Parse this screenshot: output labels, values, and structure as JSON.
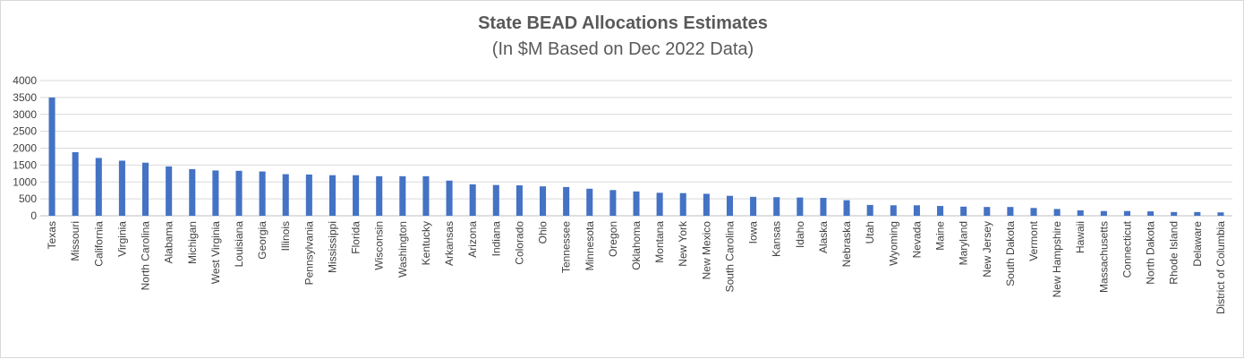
{
  "chart_data": {
    "type": "bar",
    "title": "State BEAD Allocations Estimates",
    "subtitle": "(In $M Based on Dec 2022 Data)",
    "xlabel": "",
    "ylabel": "",
    "ylim": [
      0,
      4000
    ],
    "yticks": [
      0,
      500,
      1000,
      1500,
      2000,
      2500,
      3000,
      3500,
      4000
    ],
    "grid": true,
    "legend": "none",
    "bar_color": "#4472c4",
    "categories": [
      "Texas",
      "Missouri",
      "California",
      "Virginia",
      "North Carolina",
      "Alabama",
      "Michigan",
      "West Virginia",
      "Louisiana",
      "Georgia",
      "Illinois",
      "Pennsylvania",
      "Mississippi",
      "Florida",
      "Wisconsin",
      "Washington",
      "Kentucky",
      "Arkansas",
      "Arizona",
      "Indiana",
      "Colorado",
      "Ohio",
      "Tennessee",
      "Minnesota",
      "Oregon",
      "Oklahoma",
      "Montana",
      "New York",
      "New Mexico",
      "South Carolina",
      "Iowa",
      "Kansas",
      "Idaho",
      "Alaska",
      "Nebraska",
      "Utah",
      "Wyoming",
      "Nevada",
      "Maine",
      "Maryland",
      "New Jersey",
      "South Dakota",
      "Vermont",
      "New Hampshire",
      "Hawaii",
      "Massachusetts",
      "Connecticut",
      "North Dakota",
      "Rhode Island",
      "Delaware",
      "District of Columbia"
    ],
    "values": [
      3500,
      1880,
      1710,
      1630,
      1570,
      1460,
      1380,
      1340,
      1330,
      1310,
      1230,
      1220,
      1200,
      1200,
      1170,
      1170,
      1170,
      1040,
      930,
      910,
      900,
      870,
      850,
      800,
      760,
      720,
      680,
      670,
      650,
      590,
      560,
      550,
      540,
      530,
      460,
      320,
      310,
      310,
      290,
      270,
      260,
      260,
      230,
      200,
      160,
      140,
      140,
      130,
      110,
      110,
      100
    ]
  }
}
